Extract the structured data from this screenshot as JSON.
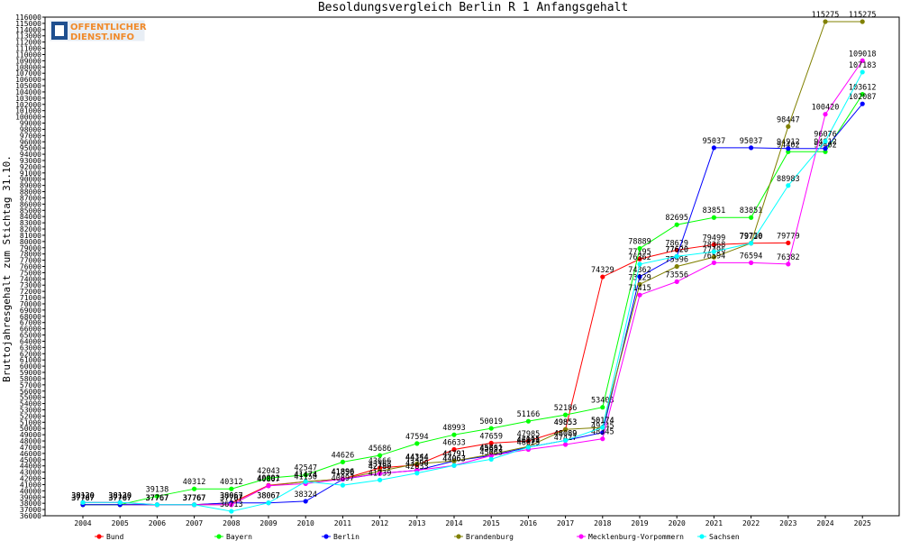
{
  "logo": {
    "line1": "OFFENTLICHER",
    "line2": "DIENST.INFO"
  },
  "chart_data": {
    "type": "line",
    "title": "Besoldungsvergleich Berlin R 1 Anfangsgehalt",
    "xlabel": "",
    "ylabel": "Bruttojahresgehalt zum Stichtag 31.10.",
    "categories": [
      "2004",
      "2005",
      "2006",
      "2007",
      "2008",
      "2009",
      "2010",
      "2011",
      "2012",
      "2013",
      "2014",
      "2015",
      "2016",
      "2017",
      "2018",
      "2019",
      "2020",
      "2021",
      "2022",
      "2023",
      "2024",
      "2025"
    ],
    "ylim": [
      36000,
      116000
    ],
    "ystep": 1000,
    "legend_position": "bottom",
    "series": [
      {
        "name": "Bund",
        "color": "#ff0000",
        "values": [
          37767,
          37767,
          37767,
          37767,
          38067,
          40891,
          41474,
          41896,
          43666,
          44154,
          46633,
          47659,
          47985,
          49853,
          74329,
          77195,
          78629,
          79499,
          79730,
          79779,
          null,
          null
        ]
      },
      {
        "name": "Bayern",
        "color": "#00ff00",
        "values": [
          37767,
          37767,
          39138,
          40312,
          40312,
          42043,
          42547,
          44626,
          45686,
          47594,
          48993,
          50019,
          51166,
          52186,
          53403,
          78889,
          82695,
          83851,
          83851,
          94402,
          94402,
          103612
        ]
      },
      {
        "name": "Berlin",
        "color": "#0000ff",
        "values": [
          37767,
          37767,
          37767,
          37767,
          38067,
          38067,
          38324,
          41850,
          42780,
          43290,
          44791,
          45652,
          46991,
          48089,
          49345,
          74362,
          77620,
          95037,
          95037,
          94912,
          94912,
          102087
        ]
      },
      {
        "name": "Brandenburg",
        "color": "#808000",
        "values": [
          38130,
          38130,
          37767,
          37767,
          37767,
          40807,
          41474,
          41896,
          43163,
          44344,
          44791,
          45861,
          47115,
          49853,
          50174,
          73129,
          75996,
          77496,
          79730,
          98447,
          115275,
          115275
        ]
      },
      {
        "name": "Mecklenburg-Vorpommern",
        "color": "#ff00ff",
        "values": [
          38130,
          38130,
          37767,
          37767,
          37767,
          40807,
          41150,
          41896,
          42780,
          43290,
          44063,
          45652,
          46625,
          47427,
          48345,
          71415,
          73556,
          76594,
          76594,
          76382,
          100420,
          109018
        ]
      },
      {
        "name": "Sachsen",
        "color": "#00ffff",
        "values": [
          38130,
          38130,
          37767,
          37767,
          36713,
          38067,
          41474,
          40897,
          41739,
          42833,
          44063,
          45063,
          46991,
          48089,
          50174,
          76362,
          77620,
          78368,
          79720,
          88983,
          96076,
          107183
        ]
      }
    ]
  }
}
